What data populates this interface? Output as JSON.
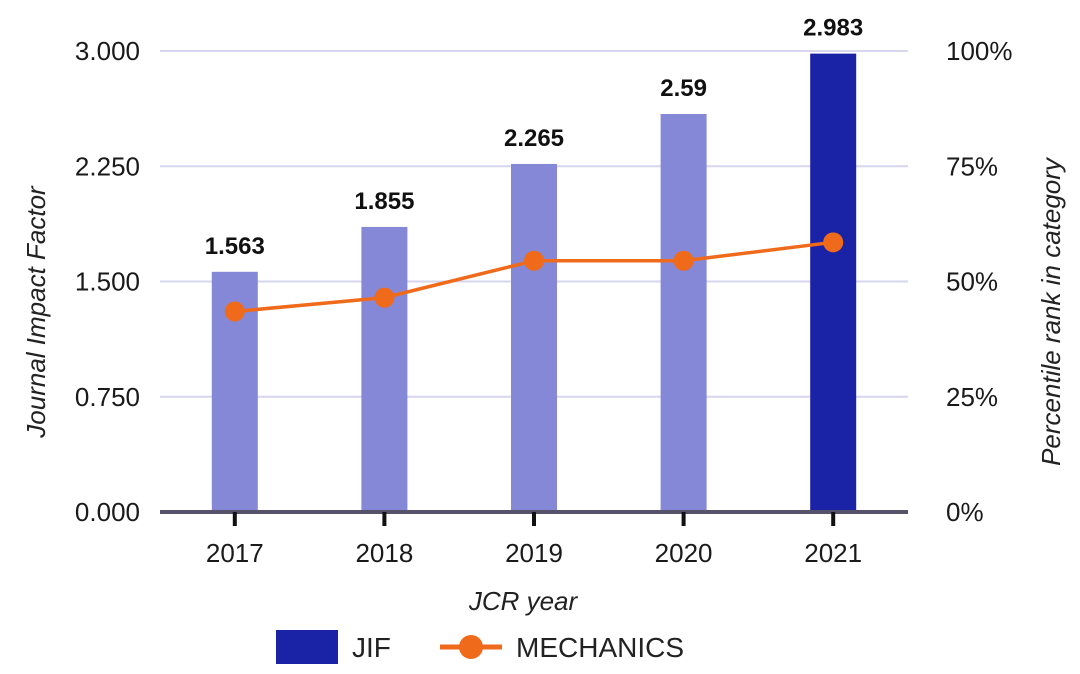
{
  "chart_data": {
    "type": "bar",
    "categories": [
      "2017",
      "2018",
      "2019",
      "2020",
      "2021"
    ],
    "series": [
      {
        "name": "JIF",
        "type": "bar",
        "axis": "left",
        "values": [
          1.563,
          1.855,
          2.265,
          2.59,
          2.983
        ],
        "data_labels": [
          "1.563",
          "1.855",
          "2.265",
          "2.59",
          "2.983"
        ],
        "color": "#8488d6",
        "highlight_color": "#1a23a6",
        "highlight_index": 4
      },
      {
        "name": "MECHANICS",
        "type": "line",
        "axis": "right",
        "values": [
          43.5,
          46.5,
          54.5,
          54.5,
          58.5
        ],
        "color": "#f06a1c"
      }
    ],
    "xlabel": "JCR year",
    "ylabel": "Journal Impact Factor",
    "y2label": "Percentile rank in category",
    "ylim": [
      0,
      3.0
    ],
    "y2lim": [
      0,
      100
    ],
    "y_ticks": [
      "0.000",
      "0.750",
      "1.500",
      "2.250",
      "3.000"
    ],
    "y_tick_values": [
      0,
      0.75,
      1.5,
      2.25,
      3.0
    ],
    "y2_ticks": [
      "0%",
      "25%",
      "50%",
      "75%",
      "100%"
    ],
    "y2_tick_values": [
      0,
      25,
      50,
      75,
      100
    ],
    "grid": true,
    "legend": {
      "placement": "bottom",
      "items": [
        {
          "label": "JIF",
          "kind": "box",
          "color": "#1a23a6"
        },
        {
          "label": "MECHANICS",
          "kind": "line-marker",
          "color": "#f06a1c"
        }
      ]
    }
  }
}
